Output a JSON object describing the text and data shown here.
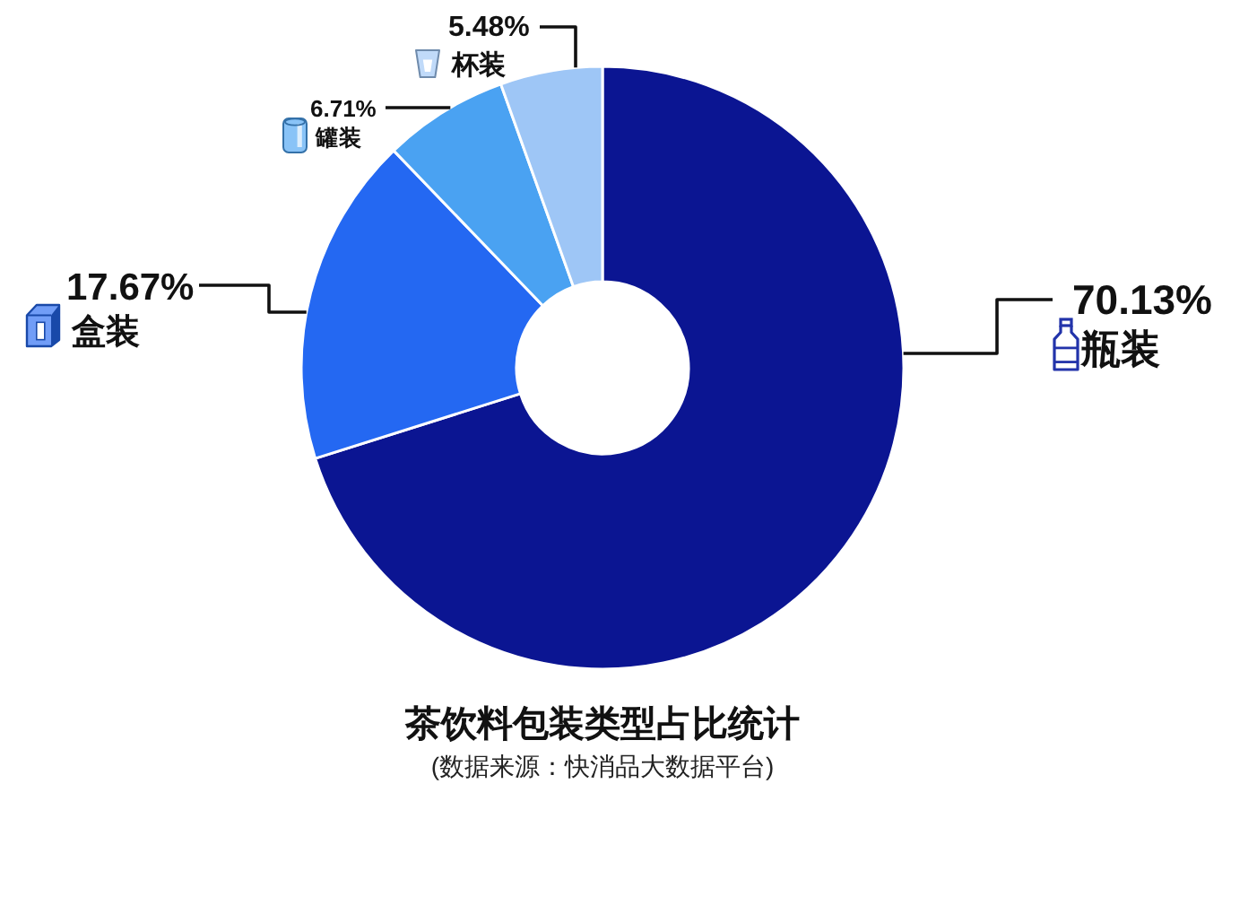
{
  "chart_data": {
    "type": "donut",
    "title": "茶饮料包装类型占比统计",
    "subtitle": "(数据来源：快消品大数据平台)",
    "categories": [
      "瓶装",
      "盒装",
      "罐装",
      "杯装"
    ],
    "values": [
      70.13,
      17.67,
      6.71,
      5.48
    ],
    "colors": [
      "#0b1592",
      "#2468f2",
      "#4aa2f2",
      "#9ec6f6"
    ],
    "value_labels": [
      "70.13%",
      "17.67%",
      "6.71%",
      "5.48%"
    ]
  }
}
